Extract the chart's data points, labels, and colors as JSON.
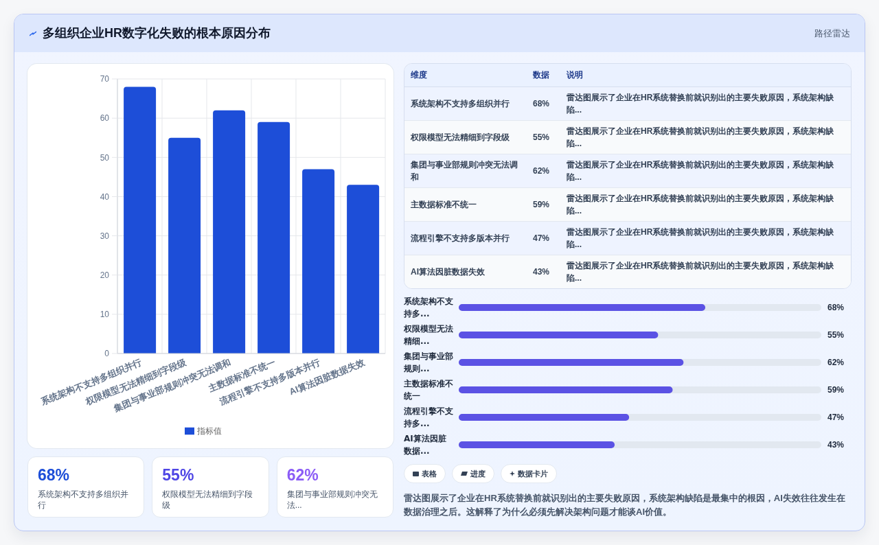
{
  "chart_data": [
    {
      "type": "bar",
      "title": "多组织企业HR数字化失败的根本原因分布",
      "annotations": [
        "路径雷达"
      ],
      "categories": [
        "系统架构不支持多组织并行",
        "权限模型无法精细到字段级",
        "集团与事业部规则冲突无法调和",
        "主数据标准不统一",
        "流程引擎不支持多版本并行",
        "AI算法因脏数据失效"
      ],
      "series": [
        {
          "name": "指标值",
          "color": "#1d4ed8",
          "values": [
            68,
            55,
            62,
            59,
            47,
            43
          ]
        }
      ],
      "ylim": [
        0,
        70
      ],
      "yticks": [
        0,
        10,
        20,
        30,
        40,
        50,
        60,
        70
      ],
      "grid": true,
      "legend": "bottom"
    },
    {
      "type": "other",
      "categories": [
        "系统架构不支持多组织并行",
        "权限模型无法精细到字段级",
        "集团与事业部规则冲突无法..."
      ],
      "value_labels": [
        "68%",
        "55%",
        "62%"
      ]
    },
    {
      "type": "other",
      "categories": [
        "系统架构不支持多组织并行",
        "权限模型无法精细到字段级",
        "集团与事业部规则冲突无法调和",
        "主数据标准不统一",
        "流程引擎不支持多版本并行",
        "AI算法因脏数据失效"
      ],
      "value_labels": [
        "68%",
        "55%",
        "62%",
        "59%",
        "47%",
        "43%"
      ],
      "annotations": [
        "维度",
        "数据",
        "说明",
        "雷达图展示了企业在HR系统替换前就识别出的主要失败原因，系统架构缺陷...",
        "雷达图展示了企业在HR系统替换前就识别出的主要失败原因，系统架构缺陷...",
        "雷达图展示了企业在HR系统替换前就识别出的主要失败原因，系统架构缺陷...",
        "雷达图展示了企业在HR系统替换前就识别出的主要失败原因，系统架构缺陷...",
        "雷达图展示了企业在HR系统替换前就识别出的主要失败原因，系统架构缺陷...",
        "雷达图展示了企业在HR系统替换前就识别出的主要失败原因，系统架构缺陷..."
      ]
    },
    {
      "type": "bar",
      "orientation": "horizontal",
      "categories": [
        "系统架构不支持多...",
        "权限模型无法精细...",
        "集团与事业部规则...",
        "主数据标准不统一",
        "流程引擎不支持多...",
        "AI算法因脏数据..."
      ],
      "values": [
        68,
        55,
        62,
        59,
        47,
        43
      ],
      "value_labels": [
        "68%",
        "55%",
        "62%",
        "59%",
        "47%",
        "43%"
      ],
      "color": "#5b52e4",
      "xlim": [
        0,
        100
      ],
      "tick_labels": "y"
    },
    {
      "type": "other",
      "categories": [
        "表格",
        "进度",
        "数据卡片"
      ],
      "annotations": [
        "雷达图展示了企业在HR系统替换前就识别出的主要失败原因，系统架构缺陷是最集中的根因，AI失效往往发生在数据治理之后。这解释了为什么必须先解决架构问题才能谈AI价值。"
      ]
    }
  ]
}
